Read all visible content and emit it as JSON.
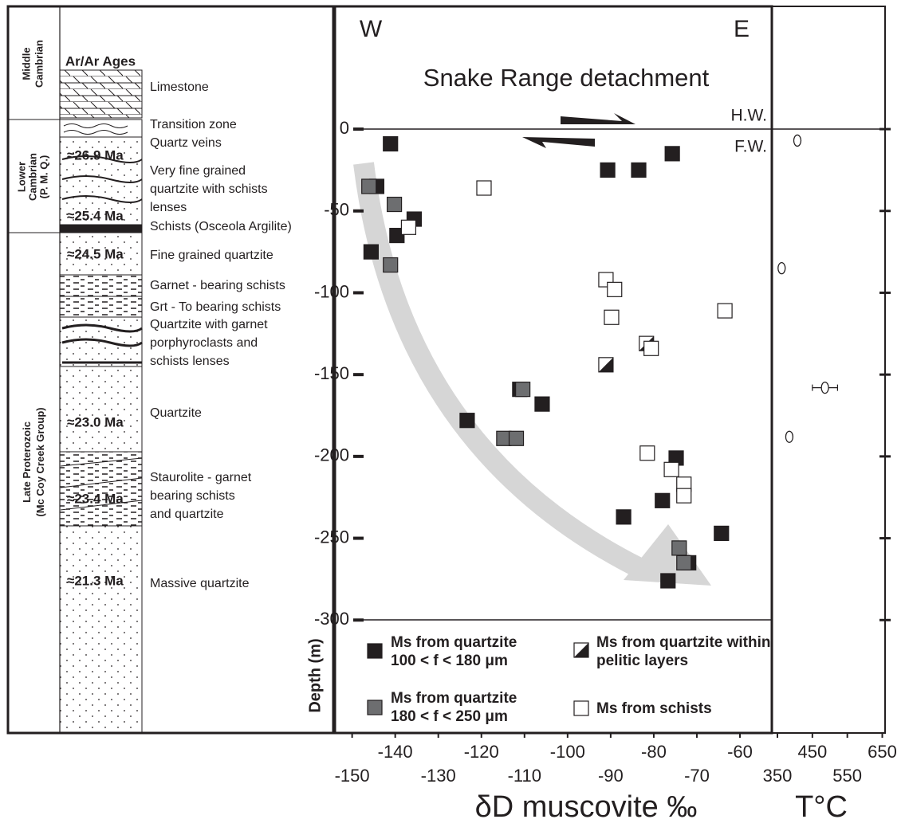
{
  "column": {
    "title": "Ar/Ar Ages",
    "periods": [
      {
        "lines": [
          "Middle",
          "Cambrian"
        ]
      },
      {
        "lines": [
          "Lower",
          "Cambrian",
          "(P. M. Q.)"
        ]
      },
      {
        "lines": [
          "Late Proterozoic",
          "(Mc Coy Creek Group)"
        ]
      }
    ],
    "units": [
      {
        "lines": [
          "Limestone"
        ]
      },
      {
        "lines": [
          "Transition zone"
        ]
      },
      {
        "lines": [
          "Quartz veins"
        ]
      },
      {
        "lines": [
          "Very fine grained",
          "quartzite with schists",
          "lenses"
        ]
      },
      {
        "lines": [
          "Schists (Osceola Argilite)"
        ]
      },
      {
        "lines": [
          "Fine grained quartzite"
        ]
      },
      {
        "lines": [
          "Garnet - bearing schists"
        ]
      },
      {
        "lines": [
          "Grt - To bearing schists"
        ]
      },
      {
        "lines": [
          "Quartzite with garnet",
          "porphyroclasts and",
          "schists lenses"
        ]
      },
      {
        "lines": [
          "Quartzite"
        ]
      },
      {
        "lines": [
          "Staurolite - garnet",
          "bearing schists",
          "and quartzite"
        ]
      },
      {
        "lines": [
          "Massive quartzite"
        ]
      }
    ],
    "ages": [
      "≈26.9 Ma",
      "≈25.4 Ma",
      "≈24.5 Ma",
      "≈23.0 Ma",
      "≈23.4 Ma",
      "≈21.3 Ma"
    ]
  },
  "chart_data": [
    {
      "type": "scatter",
      "title": "Snake Range detachment",
      "annotations": [
        "W",
        "E",
        "H.W.",
        "F.W."
      ],
      "x_label": "δD muscovite ‰",
      "y_label": "Depth (m)",
      "xlim": [
        -154,
        -52.6
      ],
      "ylim": [
        -369,
        75
      ],
      "xticks": [
        -150,
        -140,
        -130,
        -120,
        -110,
        -100,
        -90,
        -80,
        -70,
        -60
      ],
      "yticks": [
        0,
        -50,
        -100,
        -150,
        -200,
        -250,
        -300
      ],
      "series": [
        {
          "name": "Ms from quartzite 100 < f < 180 μm",
          "color": "#231f20",
          "x": [
            -141.1,
            -75.7,
            -90.7,
            -83.5,
            -144.3,
            -135.6,
            -139.6,
            -145.6,
            -111.1,
            -105.9,
            -123.3,
            -74.8,
            -78.0,
            -87.0,
            -64.3,
            -71.9,
            -76.7
          ],
          "values": [
            -9,
            -15,
            -25,
            -25,
            -35,
            -55,
            -65,
            -75,
            -159,
            -168,
            -178,
            -201,
            -227,
            -237,
            -247,
            -265,
            -276
          ]
        },
        {
          "name": "Ms from quartzite 180 < f < 250 μm",
          "color": "#6d6e70",
          "x": [
            -146.1,
            -140.2,
            -141.1,
            -110.4,
            -114.8,
            -111.9,
            -74.1,
            -73.0
          ],
          "values": [
            -35,
            -46,
            -83,
            -159,
            -189,
            -189,
            -256,
            -265
          ]
        },
        {
          "name": "Ms from quartzite within pelitic layers",
          "color": "#231f20",
          "x": [
            -81.7,
            -91.1
          ],
          "values": [
            -131,
            -144
          ]
        },
        {
          "name": "Ms from schists",
          "color": "#ffffff",
          "x": [
            -119.4,
            -136.9,
            -91.1,
            -89.1,
            -63.5,
            -89.8,
            -80.6,
            -81.5,
            -75.9,
            -73.0,
            -73.0
          ],
          "values": [
            -36,
            -60,
            -92,
            -98,
            -111,
            -115,
            -134,
            -198,
            -208,
            -217,
            -224
          ]
        }
      ]
    },
    {
      "type": "scatter",
      "x_label": "T°C",
      "xlim": [
        334,
        658
      ],
      "xticks": [
        350,
        450,
        550,
        650
      ],
      "x": [
        407,
        362,
        486,
        384
      ],
      "values": [
        -7,
        -85,
        -158,
        -188
      ],
      "xerr": [
        null,
        null,
        36,
        null
      ]
    }
  ]
}
